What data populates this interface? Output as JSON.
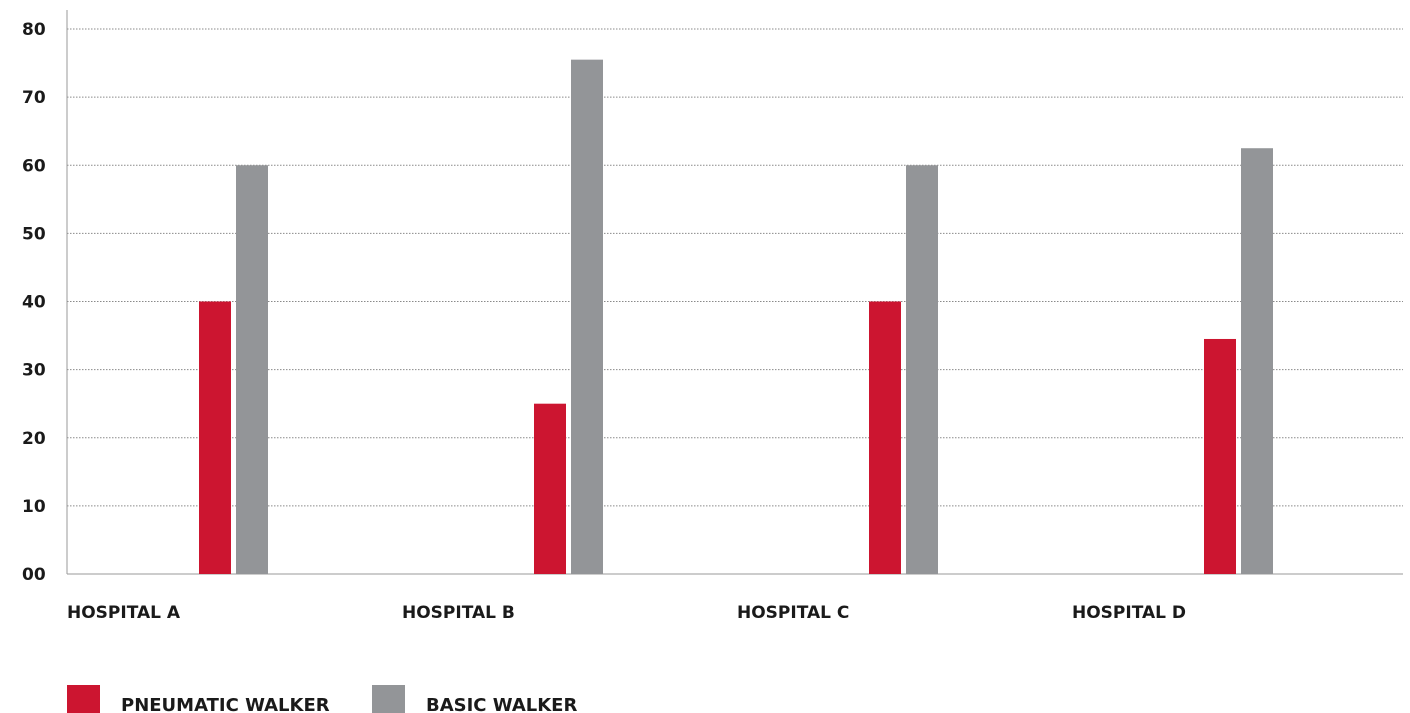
{
  "chart_data": {
    "type": "bar",
    "title": "",
    "xlabel": "",
    "ylabel": "",
    "categories": [
      "HOSPITAL A",
      "HOSPITAL B",
      "HOSPITAL C",
      "HOSPITAL D"
    ],
    "series": [
      {
        "name": "PNEUMATIC WALKER",
        "color": "#cc1530",
        "values": [
          40,
          25,
          40,
          34.5
        ]
      },
      {
        "name": "BASIC WALKER",
        "color": "#939598",
        "values": [
          60,
          75.5,
          60,
          62.5
        ]
      }
    ],
    "ylim": [
      0,
      80
    ],
    "yticks": [
      "00",
      "10",
      "20",
      "30",
      "40",
      "50",
      "60",
      "70",
      "80"
    ],
    "grid": true,
    "legend_position": "bottom-left"
  }
}
